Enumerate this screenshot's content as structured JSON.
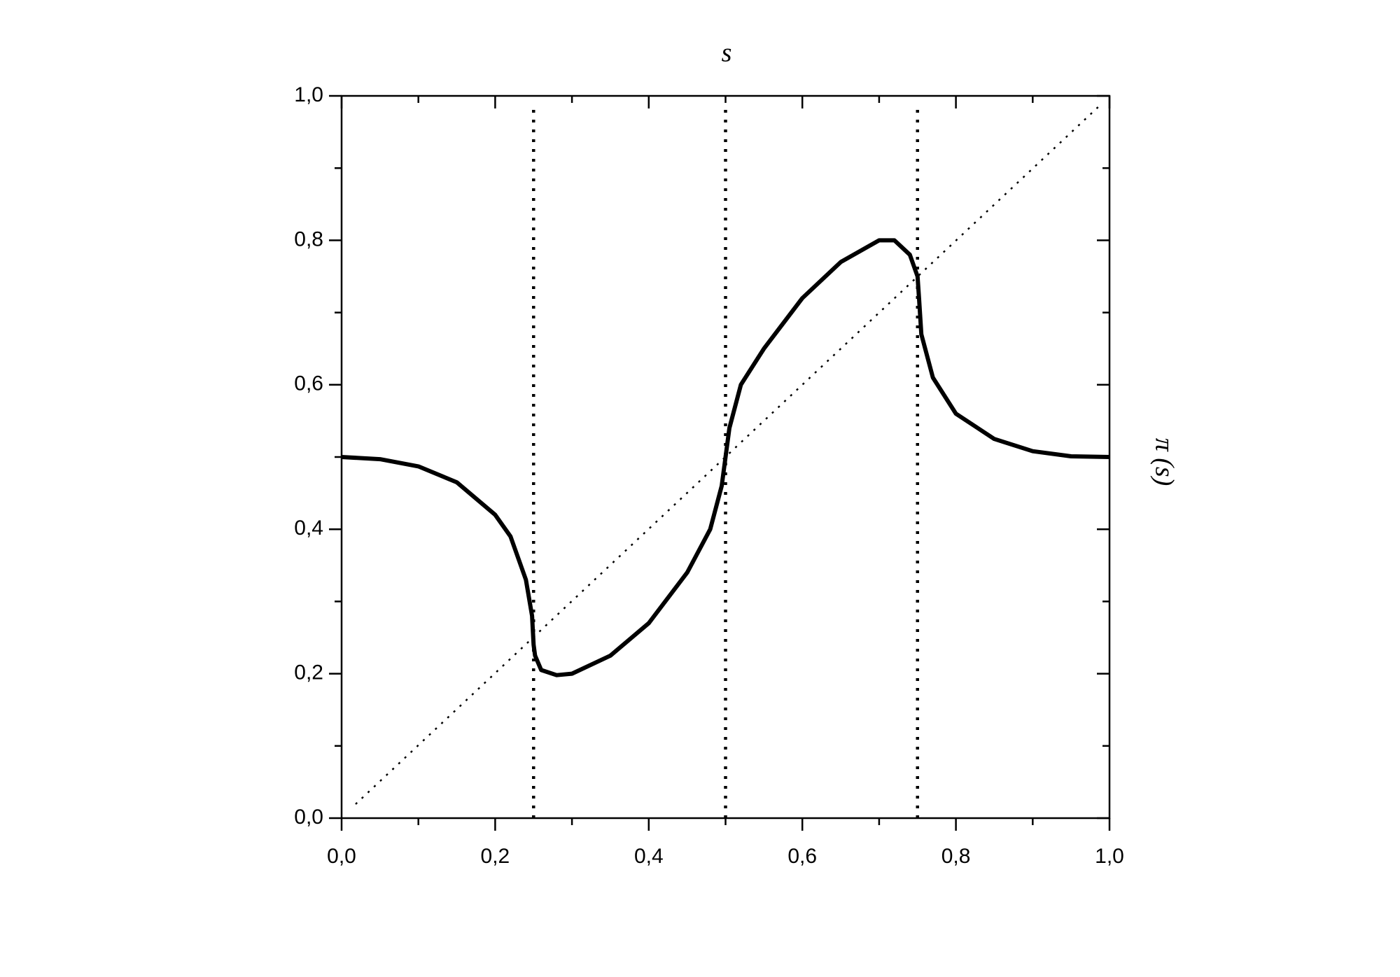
{
  "chart_data": {
    "type": "line",
    "title": "s",
    "y_label": "π (s)",
    "x": [
      0,
      0.05,
      0.1,
      0.15,
      0.2,
      0.22,
      0.24,
      0.248,
      0.25,
      0.252,
      0.26,
      0.28,
      0.3,
      0.35,
      0.4,
      0.45,
      0.48,
      0.495,
      0.5,
      0.505,
      0.52,
      0.55,
      0.6,
      0.65,
      0.7,
      0.72,
      0.74,
      0.75,
      0.752,
      0.755,
      0.77,
      0.8,
      0.85,
      0.9,
      0.95,
      1.0
    ],
    "series": [
      {
        "color": "#000000",
        "values": [
          0.5,
          0.497,
          0.487,
          0.465,
          0.42,
          0.39,
          0.33,
          0.28,
          0.24,
          0.225,
          0.205,
          0.198,
          0.2,
          0.225,
          0.27,
          0.34,
          0.4,
          0.46,
          0.5,
          0.54,
          0.6,
          0.65,
          0.72,
          0.77,
          0.8,
          0.8,
          0.78,
          0.75,
          0.72,
          0.67,
          0.61,
          0.56,
          0.525,
          0.508,
          0.501,
          0.5
        ]
      }
    ],
    "vlines": [
      0.25,
      0.5,
      0.75
    ],
    "xlim": [
      0,
      1
    ],
    "ylim": [
      0,
      1
    ],
    "xticks": [
      {
        "value": 0,
        "label": "0,0"
      },
      {
        "value": 0.2,
        "label": "0,2"
      },
      {
        "value": 0.4,
        "label": "0,4"
      },
      {
        "value": 0.6,
        "label": "0,6"
      },
      {
        "value": 0.8,
        "label": "0,8"
      },
      {
        "value": 1,
        "label": "1,0"
      }
    ],
    "yticks": [
      {
        "value": 0,
        "label": "0,0"
      },
      {
        "value": 0.2,
        "label": "0,2"
      },
      {
        "value": 0.4,
        "label": "0,4"
      },
      {
        "value": 0.6,
        "label": "0,6"
      },
      {
        "value": 0.8,
        "label": "0,8"
      },
      {
        "value": 1,
        "label": "1,0"
      }
    ],
    "minor_ticks": [
      0.1,
      0.3,
      0.5,
      0.7,
      0.9
    ]
  }
}
